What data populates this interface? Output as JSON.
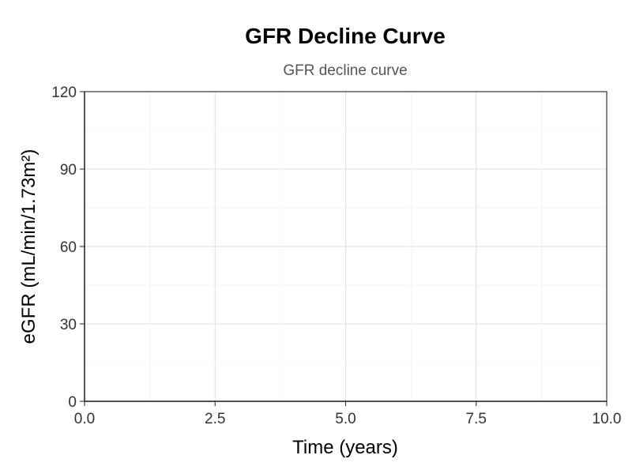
{
  "chart_data": {
    "type": "line",
    "title": "GFR Decline Curve",
    "subtitle": "GFR decline curve",
    "xlabel": "Time (years)",
    "ylabel": "eGFR (mL/min/1.73m²)",
    "xlim": [
      0,
      10
    ],
    "ylim": [
      0,
      120
    ],
    "x_ticks": [
      0,
      2.5,
      5,
      7.5,
      10
    ],
    "x_tick_labels": [
      "0.0",
      "2.5",
      "5.0",
      "7.5",
      "10.0"
    ],
    "y_ticks": [
      0,
      30,
      60,
      90,
      120
    ],
    "y_tick_labels": [
      "0",
      "30",
      "60",
      "90",
      "120"
    ],
    "x_minor_ticks": [
      1.25,
      3.75,
      6.25,
      8.75
    ],
    "y_minor_ticks": [
      15,
      45,
      75,
      105
    ],
    "grid": true,
    "series": []
  }
}
